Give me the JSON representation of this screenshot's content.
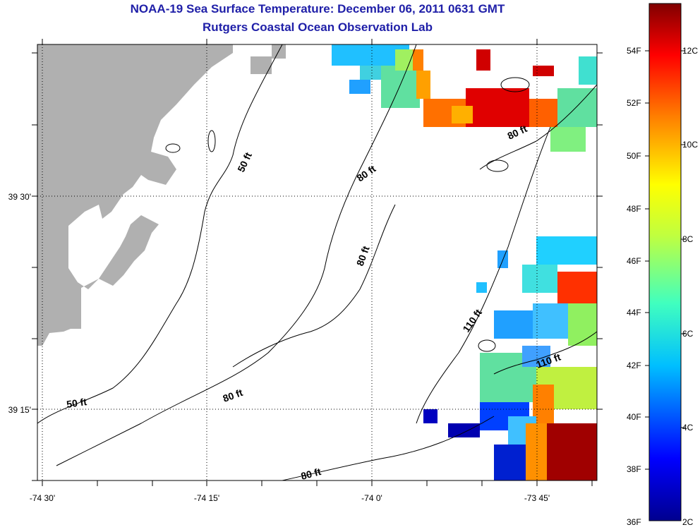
{
  "title_line1": "NOAA-19 Sea Surface Temperature:  December 06, 2011 0631 GMT",
  "title_line2": "Rutgers Coastal Ocean Observation Lab",
  "lon_labels": [
    "-74 30'",
    "-74 15'",
    "-74 0'",
    "-73 45'"
  ],
  "lat_labels": [
    "39 30'",
    "39 15'"
  ],
  "contour_labels": [
    "50 ft",
    "50 ft",
    "80 ft",
    "80 ft",
    "80 ft",
    "80 ft",
    "80 ft",
    "110 ft",
    "110 ft"
  ],
  "colorbar_f": [
    "54F",
    "52F",
    "50F",
    "48F",
    "46F",
    "44F",
    "42F",
    "40F",
    "38F",
    "36F"
  ],
  "colorbar_c": [
    "12C",
    "10C",
    "8C",
    "6C",
    "4C",
    "2C"
  ],
  "colors": {
    "title": "#1f1fa8",
    "land": "#b0b0b0",
    "contour": "#000000"
  }
}
